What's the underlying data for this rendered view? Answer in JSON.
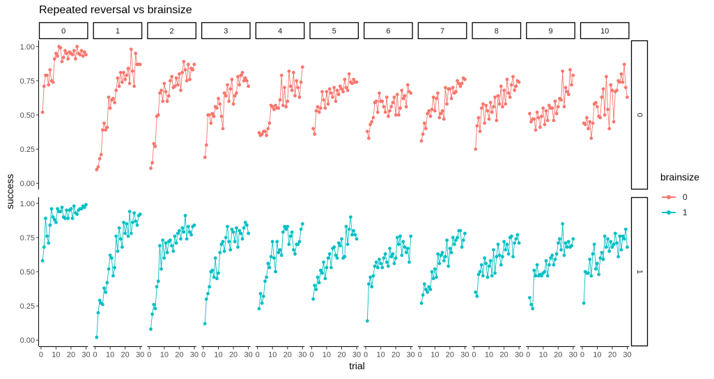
{
  "chart_data": {
    "type": "line",
    "title": "Repeated reversal vs brainsize",
    "xlabel": "trial",
    "ylabel": "success",
    "facet_cols": [
      "0",
      "1",
      "2",
      "3",
      "4",
      "5",
      "6",
      "7",
      "8",
      "9",
      "10"
    ],
    "facet_rows": [
      "0",
      "1"
    ],
    "xlim": [
      0,
      30
    ],
    "xticks": [
      0,
      10,
      20,
      30
    ],
    "ylim": [
      0,
      1
    ],
    "yticks": [
      "0.00",
      "0.25",
      "0.50",
      "0.75",
      "1.00"
    ],
    "legend": {
      "title": "brainsize",
      "placement": "right"
    },
    "series": [
      {
        "name": "0",
        "color": "#F8766D",
        "panels": [
          [
            0.52,
            0.71,
            0.79,
            0.79,
            0.72,
            0.83,
            0.75,
            0.74,
            0.91,
            0.95,
            0.93,
            1.0,
            0.99,
            0.89,
            0.92,
            0.97,
            0.95,
            0.91,
            0.96,
            0.95,
            0.94,
            0.97,
            0.91,
            1.0,
            0.95,
            0.94,
            0.97,
            0.93,
            0.96,
            0.94
          ],
          [
            0.1,
            0.12,
            0.18,
            0.21,
            0.39,
            0.44,
            0.39,
            0.41,
            0.63,
            0.55,
            0.61,
            0.62,
            0.59,
            0.68,
            0.77,
            0.71,
            0.81,
            0.74,
            0.81,
            0.76,
            0.79,
            0.84,
            0.73,
            0.98,
            0.82,
            0.71,
            0.95,
            0.87,
            0.87,
            0.87
          ],
          [
            0.11,
            0.15,
            0.29,
            0.27,
            0.49,
            0.5,
            0.66,
            0.68,
            0.6,
            0.73,
            0.67,
            0.6,
            0.64,
            0.75,
            0.78,
            0.7,
            0.71,
            0.77,
            0.72,
            0.8,
            0.68,
            0.81,
            0.89,
            0.83,
            0.75,
            0.87,
            0.76,
            0.84,
            0.83,
            0.87
          ],
          [
            0.19,
            0.28,
            0.5,
            0.5,
            0.44,
            0.51,
            0.49,
            0.56,
            0.55,
            0.62,
            0.58,
            0.49,
            0.4,
            0.66,
            0.64,
            0.72,
            0.6,
            0.69,
            0.76,
            0.58,
            0.64,
            0.66,
            0.78,
            0.72,
            0.79,
            0.81,
            0.75,
            0.77,
            0.75,
            0.71
          ],
          [
            0.37,
            0.35,
            0.36,
            0.38,
            0.38,
            0.35,
            0.4,
            0.44,
            0.57,
            0.56,
            0.54,
            0.57,
            0.55,
            0.55,
            0.61,
            0.79,
            0.57,
            0.7,
            0.56,
            0.6,
            0.82,
            0.71,
            0.68,
            0.81,
            0.64,
            0.75,
            0.7,
            0.63,
            0.74,
            0.85
          ],
          [
            0.4,
            0.36,
            0.53,
            0.56,
            0.52,
            0.55,
            0.67,
            0.61,
            0.55,
            0.67,
            0.58,
            0.69,
            0.66,
            0.63,
            0.7,
            0.6,
            0.68,
            0.65,
            0.71,
            0.69,
            0.67,
            0.76,
            0.7,
            0.68,
            0.8,
            0.74,
            0.73,
            0.76,
            0.74,
            0.74
          ],
          [
            0.38,
            0.33,
            0.43,
            0.45,
            0.48,
            0.59,
            0.6,
            0.52,
            0.66,
            0.6,
            0.6,
            0.56,
            0.52,
            0.63,
            0.49,
            0.53,
            0.56,
            0.59,
            0.63,
            0.5,
            0.65,
            0.5,
            0.55,
            0.68,
            0.62,
            0.64,
            0.56,
            0.72,
            0.67,
            0.66
          ],
          [
            0.31,
            0.36,
            0.44,
            0.4,
            0.51,
            0.53,
            0.49,
            0.54,
            0.63,
            0.53,
            0.62,
            0.66,
            0.48,
            0.51,
            0.53,
            0.47,
            0.7,
            0.58,
            0.69,
            0.69,
            0.62,
            0.7,
            0.66,
            0.67,
            0.75,
            0.73,
            0.71,
            0.73,
            0.77,
            0.76
          ],
          [
            0.25,
            0.42,
            0.48,
            0.38,
            0.55,
            0.58,
            0.44,
            0.57,
            0.53,
            0.47,
            0.59,
            0.52,
            0.56,
            0.63,
            0.46,
            0.64,
            0.58,
            0.71,
            0.56,
            0.68,
            0.58,
            0.76,
            0.66,
            0.63,
            0.72,
            0.78,
            0.68,
            0.71,
            0.75,
            0.74
          ],
          [
            0.51,
            0.45,
            0.47,
            0.47,
            0.39,
            0.52,
            0.48,
            0.41,
            0.49,
            0.55,
            0.43,
            0.53,
            0.46,
            0.57,
            0.55,
            0.55,
            0.46,
            0.6,
            0.51,
            0.56,
            0.62,
            0.61,
            0.82,
            0.56,
            0.7,
            0.67,
            0.65,
            0.83,
            0.72,
            0.79
          ],
          [
            0.44,
            0.43,
            0.48,
            0.4,
            0.45,
            0.33,
            0.44,
            0.58,
            0.59,
            0.56,
            0.49,
            0.48,
            0.63,
            0.69,
            0.5,
            0.78,
            0.54,
            0.4,
            0.72,
            0.68,
            0.45,
            0.67,
            0.68,
            0.75,
            0.74,
            0.8,
            0.74,
            0.87,
            0.7,
            0.63
          ]
        ]
      },
      {
        "name": "1",
        "color": "#00BFC4",
        "panels": [
          [
            0.58,
            0.68,
            0.89,
            0.76,
            0.71,
            0.84,
            0.96,
            0.9,
            0.88,
            0.86,
            0.96,
            0.94,
            0.94,
            0.97,
            0.9,
            0.89,
            0.95,
            0.89,
            0.95,
            0.96,
            0.89,
            0.98,
            0.93,
            0.92,
            0.95,
            0.96,
            0.96,
            0.98,
            0.97,
            0.99
          ],
          [
            0.02,
            0.2,
            0.29,
            0.27,
            0.26,
            0.38,
            0.35,
            0.42,
            0.52,
            0.62,
            0.6,
            0.47,
            0.53,
            0.76,
            0.65,
            0.82,
            0.74,
            0.68,
            0.86,
            0.78,
            0.85,
            0.76,
            0.94,
            0.78,
            0.86,
            0.93,
            0.87,
            0.84,
            0.91,
            0.92
          ],
          [
            0.08,
            0.19,
            0.26,
            0.23,
            0.39,
            0.43,
            0.69,
            0.52,
            0.73,
            0.6,
            0.71,
            0.64,
            0.72,
            0.73,
            0.69,
            0.65,
            0.76,
            0.71,
            0.78,
            0.8,
            0.74,
            0.82,
            0.79,
            0.91,
            0.74,
            0.83,
            0.79,
            0.77,
            0.83,
            0.84
          ],
          [
            0.12,
            0.3,
            0.34,
            0.39,
            0.5,
            0.51,
            0.46,
            0.6,
            0.45,
            0.49,
            0.64,
            0.7,
            0.72,
            0.65,
            0.75,
            0.83,
            0.72,
            0.66,
            0.81,
            0.79,
            0.72,
            0.82,
            0.68,
            0.8,
            0.78,
            0.74,
            0.82,
            0.86,
            0.84,
            0.78
          ],
          [
            0.23,
            0.34,
            0.27,
            0.32,
            0.43,
            0.46,
            0.56,
            0.53,
            0.61,
            0.72,
            0.6,
            0.5,
            0.72,
            0.64,
            0.66,
            0.62,
            0.79,
            0.83,
            0.81,
            0.83,
            0.7,
            0.76,
            0.79,
            0.66,
            0.63,
            0.7,
            0.7,
            0.72,
            0.81,
            0.85
          ],
          [
            0.3,
            0.4,
            0.37,
            0.46,
            0.42,
            0.51,
            0.49,
            0.57,
            0.45,
            0.53,
            0.6,
            0.63,
            0.53,
            0.67,
            0.68,
            0.62,
            0.6,
            0.71,
            0.69,
            0.74,
            0.6,
            0.61,
            0.83,
            0.7,
            0.81,
            0.9,
            0.77,
            0.8,
            0.77,
            0.74
          ],
          [
            0.14,
            0.41,
            0.46,
            0.39,
            0.47,
            0.54,
            0.57,
            0.53,
            0.59,
            0.56,
            0.53,
            0.6,
            0.63,
            0.57,
            0.54,
            0.67,
            0.61,
            0.63,
            0.56,
            0.6,
            0.75,
            0.7,
            0.76,
            0.62,
            0.72,
            0.68,
            0.64,
            0.67,
            0.57,
            0.76
          ],
          [
            0.27,
            0.33,
            0.41,
            0.37,
            0.35,
            0.39,
            0.37,
            0.5,
            0.45,
            0.52,
            0.46,
            0.63,
            0.56,
            0.62,
            0.64,
            0.58,
            0.61,
            0.73,
            0.54,
            0.67,
            0.64,
            0.75,
            0.7,
            0.73,
            0.75,
            0.8,
            0.8,
            0.68,
            0.73,
            0.78
          ],
          [
            0.35,
            0.32,
            0.48,
            0.5,
            0.55,
            0.47,
            0.6,
            0.56,
            0.46,
            0.54,
            0.58,
            0.47,
            0.66,
            0.49,
            0.61,
            0.7,
            0.62,
            0.55,
            0.61,
            0.72,
            0.66,
            0.7,
            0.63,
            0.75,
            0.76,
            0.61,
            0.71,
            0.74,
            0.77,
            0.71
          ],
          [
            0.31,
            0.26,
            0.23,
            0.51,
            0.47,
            0.55,
            0.47,
            0.48,
            0.47,
            0.49,
            0.5,
            0.58,
            0.47,
            0.55,
            0.6,
            0.62,
            0.55,
            0.59,
            0.63,
            0.71,
            0.74,
            0.66,
            0.85,
            0.62,
            0.71,
            0.68,
            0.72,
            0.68,
            0.69,
            0.74
          ],
          [
            0.27,
            0.5,
            0.49,
            0.49,
            0.59,
            0.47,
            0.63,
            0.7,
            0.52,
            0.56,
            0.48,
            0.6,
            0.64,
            0.59,
            0.76,
            0.68,
            0.74,
            0.65,
            0.72,
            0.68,
            0.7,
            0.78,
            0.71,
            0.61,
            0.76,
            0.66,
            0.76,
            0.74,
            0.81,
            0.68
          ]
        ]
      }
    ]
  }
}
